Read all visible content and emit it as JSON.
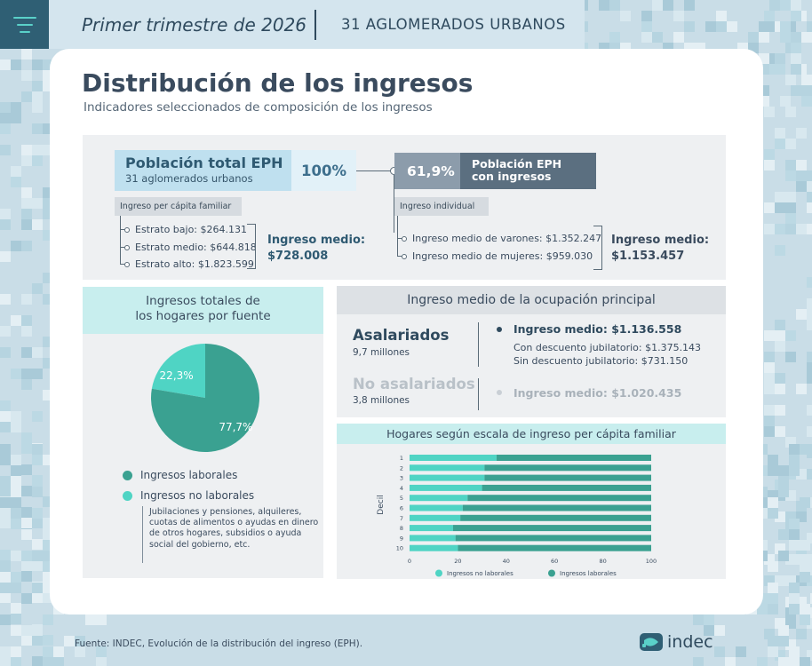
{
  "colors": {
    "teal_dark": "#3aa191",
    "teal_light": "#4fd4c4",
    "navy": "#2f4a5e",
    "pop_total_bg": "#bfe0ef"
  },
  "header": {
    "menu_icon": "hamburger-menu-icon",
    "period": "Primer trimestre de 2026",
    "coverage": "31 AGLOMERADOS URBANOS"
  },
  "page": {
    "title": "Distribución de los ingresos",
    "subtitle": "Indicadores seleccionados de composición de los ingresos"
  },
  "poblacion": {
    "total_label": "Población total EPH",
    "total_sub": "31 aglomerados urbanos",
    "total_pct": "100%",
    "con_ingresos_pct": "61,9%",
    "con_ingresos_label_1": "Población EPH",
    "con_ingresos_label_2": "con ingresos",
    "per_capita_label": "Ingreso per cápita familiar",
    "estratos": [
      "Estrato bajo: $264.131",
      "Estrato medio: $644.818",
      "Estrato alto: $1.823.599"
    ],
    "per_capita_medio_label": "Ingreso medio:",
    "per_capita_medio_value": "$728.008",
    "individual_label": "Ingreso individual",
    "individual_items": [
      "Ingreso medio de varones: $1.352.247",
      "Ingreso medio de mujeres: $959.030"
    ],
    "individual_medio_label": "Ingreso medio:",
    "individual_medio_value": "$1.153.457"
  },
  "fuentes": {
    "title_1": "Ingresos totales de",
    "title_2": "los hogares por fuente",
    "legend": [
      {
        "label": "Ingresos laborales",
        "color": "#3aa191"
      },
      {
        "label": "Ingresos no laborales",
        "color": "#4fd4c4"
      }
    ],
    "note": "Jubilaciones y pensiones, alquileres, cuotas de alimentos o ayudas en dinero de otros hogares,  subsidios o ayuda social del gobierno, etc."
  },
  "ocupacion": {
    "title": "Ingreso medio de la ocupación principal",
    "asalariados": "Asalariados",
    "asalariados_n": "9,7 millones",
    "asalariados_medio": "Ingreso medio: $1.136.558",
    "con_descuento": "Con descuento jubilatorio: $1.375.143",
    "sin_descuento": "Sin descuento jubilatorio: $731.150",
    "no_asalariados": "No asalariados",
    "no_asalariados_n": "3,8 millones",
    "no_asalariados_medio": "Ingreso medio: $1.020.435"
  },
  "chart_data": [
    {
      "type": "pie",
      "slices": [
        {
          "label": "Ingresos laborales",
          "value": 77.7,
          "display": "77,7%",
          "color": "#3aa191"
        },
        {
          "label": "Ingresos no laborales",
          "value": 22.3,
          "display": "22,3%",
          "color": "#4fd4c4"
        }
      ]
    },
    {
      "type": "bar",
      "orientation": "horizontal",
      "stacked": true,
      "title": "Hogares según escala de ingreso per cápita familiar",
      "ylabel": "Decil",
      "xlabel": "",
      "categories": [
        "1",
        "2",
        "3",
        "4",
        "5",
        "6",
        "7",
        "8",
        "9",
        "10"
      ],
      "xlim": [
        0,
        100
      ],
      "xticks": [
        "0",
        "20",
        "40",
        "60",
        "80",
        "100"
      ],
      "series": [
        {
          "name": "Ingresos no laborales",
          "color": "#4fd4c4",
          "values": [
            36,
            31,
            31,
            30,
            24,
            22,
            21,
            18,
            19,
            20
          ]
        },
        {
          "name": "Ingresos laborales",
          "color": "#3aa191",
          "values": [
            64,
            69,
            69,
            70,
            76,
            78,
            79,
            82,
            81,
            80
          ]
        }
      ],
      "legend_position": "bottom"
    }
  ],
  "footer": {
    "source": "Fuente: INDEC, Evolución de la distribución del ingreso (EPH).",
    "logo_text": "indec"
  }
}
